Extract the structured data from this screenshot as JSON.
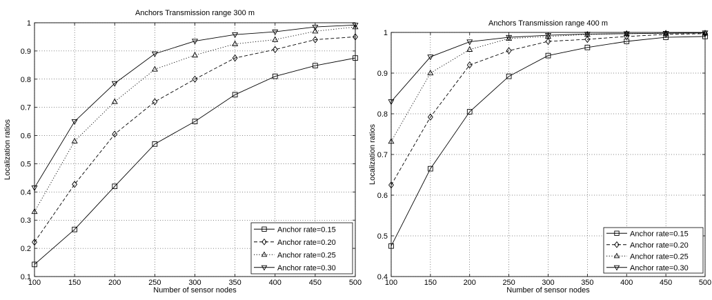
{
  "chart_data": [
    {
      "type": "line",
      "title": "Anchors Transmission range 300 m",
      "xlabel": "Number of sensor nodes",
      "ylabel": "Localization ratios",
      "x": [
        100,
        150,
        200,
        250,
        300,
        350,
        400,
        450,
        500
      ],
      "xlim": [
        100,
        500
      ],
      "ylim": [
        0.1,
        1.0
      ],
      "xticks": [
        "100",
        "150",
        "200",
        "250",
        "300",
        "350",
        "400",
        "450",
        "500"
      ],
      "yticks": [
        "0.1",
        "0.2",
        "0.3",
        "0.4",
        "0.5",
        "0.6",
        "0.7",
        "0.8",
        "0.9",
        "1"
      ],
      "grid": true,
      "legend_position": "bottom-right",
      "series": [
        {
          "name": "Anchor rate=0.15",
          "line_style": "solid",
          "marker": "square",
          "values": [
            0.143,
            0.267,
            0.42,
            0.57,
            0.65,
            0.745,
            0.81,
            0.848,
            0.875
          ]
        },
        {
          "name": "Anchor rate=0.20",
          "line_style": "dashed",
          "marker": "diamond",
          "values": [
            0.222,
            0.427,
            0.605,
            0.72,
            0.8,
            0.875,
            0.905,
            0.94,
            0.95
          ]
        },
        {
          "name": "Anchor rate=0.25",
          "line_style": "dotted",
          "marker": "triangle-up",
          "values": [
            0.33,
            0.58,
            0.72,
            0.835,
            0.885,
            0.925,
            0.94,
            0.97,
            0.985
          ]
        },
        {
          "name": "Anchor rate=0.30",
          "line_style": "solid",
          "marker": "triangle-down",
          "values": [
            0.415,
            0.65,
            0.785,
            0.89,
            0.935,
            0.958,
            0.968,
            0.985,
            0.992
          ]
        }
      ]
    },
    {
      "type": "line",
      "title": "Anchors Transmission range 400 m",
      "xlabel": "Number of sensor nodes",
      "ylabel": "Localization ratios",
      "x": [
        100,
        150,
        200,
        250,
        300,
        350,
        400,
        450,
        500
      ],
      "xlim": [
        100,
        500
      ],
      "ylim": [
        0.4,
        1.0
      ],
      "xticks": [
        "100",
        "150",
        "200",
        "250",
        "300",
        "350",
        "400",
        "450",
        "500"
      ],
      "yticks": [
        "0.4",
        "0.5",
        "0.6",
        "0.7",
        "0.8",
        "0.9",
        "1"
      ],
      "grid": true,
      "legend_position": "bottom-right",
      "series": [
        {
          "name": "Anchor rate=0.15",
          "line_style": "solid",
          "marker": "square",
          "values": [
            0.475,
            0.665,
            0.805,
            0.892,
            0.943,
            0.963,
            0.978,
            0.988,
            0.99
          ]
        },
        {
          "name": "Anchor rate=0.20",
          "line_style": "dashed",
          "marker": "diamond",
          "values": [
            0.625,
            0.792,
            0.92,
            0.955,
            0.978,
            0.983,
            0.99,
            0.995,
            0.997
          ]
        },
        {
          "name": "Anchor rate=0.25",
          "line_style": "dotted",
          "marker": "triangle-up",
          "values": [
            0.732,
            0.9,
            0.958,
            0.985,
            0.99,
            0.995,
            0.997,
            0.998,
            0.998
          ]
        },
        {
          "name": "Anchor rate=0.30",
          "line_style": "solid",
          "marker": "triangle-down",
          "values": [
            0.83,
            0.94,
            0.977,
            0.988,
            0.993,
            0.996,
            0.997,
            0.998,
            0.999
          ]
        }
      ]
    }
  ]
}
